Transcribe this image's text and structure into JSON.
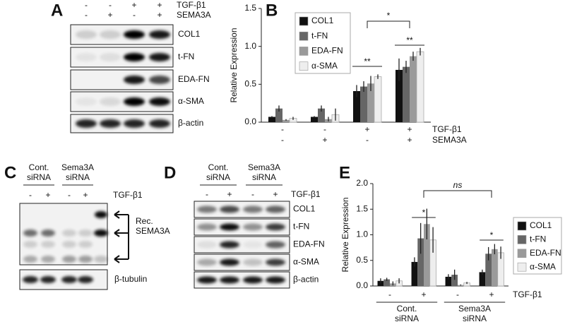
{
  "panel_labels": [
    "A",
    "B",
    "C",
    "D",
    "E"
  ],
  "blot_A": {
    "conditions": [
      {
        "label": "TGF-β1",
        "signs": [
          "-",
          "-",
          "+",
          "+"
        ]
      },
      {
        "label": "SEMA3A",
        "signs": [
          "-",
          "+",
          "-",
          "+"
        ]
      }
    ],
    "bands": [
      "COL1",
      "t-FN",
      "EDA-FN",
      "α-SMA",
      "β-actin"
    ]
  },
  "blot_C": {
    "groups": [
      [
        "Cont.",
        "siRNA"
      ],
      [
        "Sema3A",
        "siRNA"
      ]
    ],
    "signs": [
      "-",
      "+",
      "-",
      "+"
    ],
    "treatment": "TGF-β1",
    "annotation": [
      "Rec.",
      "SEMA3A"
    ],
    "loading": "β-tubulin"
  },
  "blot_D": {
    "groups": [
      [
        "Cont.",
        "siRNA"
      ],
      [
        "Sema3A",
        "siRNA"
      ]
    ],
    "signs": [
      "-",
      "+",
      "-",
      "+"
    ],
    "treatment": "TGF-β1",
    "bands": [
      "COL1",
      "t-FN",
      "EDA-FN",
      "α-SMA",
      "β-actin"
    ]
  },
  "chart_data": [
    {
      "type": "bar",
      "y_label": "Relative Expression",
      "category_rows": [
        {
          "label": "TGF-β1",
          "values": [
            "-",
            "-",
            "+",
            "+"
          ]
        },
        {
          "label": "SEMA3A",
          "values": [
            "-",
            "+",
            "-",
            "+"
          ]
        }
      ],
      "series": [
        {
          "name": "COL1",
          "color": "#111111",
          "values": [
            0.07,
            0.07,
            0.41,
            0.69
          ],
          "errors": [
            0.01,
            0.01,
            0.08,
            0.15
          ]
        },
        {
          "name": "t-FN",
          "color": "#666666",
          "values": [
            0.18,
            0.18,
            0.47,
            0.73
          ],
          "errors": [
            0.04,
            0.04,
            0.07,
            0.08
          ]
        },
        {
          "name": "EDA-FN",
          "color": "#9a9a9a",
          "values": [
            0.03,
            0.04,
            0.51,
            0.87
          ],
          "errors": [
            0.01,
            0.03,
            0.1,
            0.06
          ]
        },
        {
          "name": "α-SMA",
          "color": "#eeeeee",
          "values": [
            0.05,
            0.1,
            0.6,
            0.93
          ],
          "errors": [
            0.02,
            0.08,
            0.03,
            0.05
          ]
        }
      ],
      "ylim": [
        0,
        1.5
      ],
      "yticks": [
        {
          "value": 0,
          "label": "0.0"
        },
        0.5,
        {
          "value": 1,
          "label": "1.0"
        },
        1.5
      ],
      "legend": "upper left",
      "annotations": [
        "**",
        "**",
        "*"
      ]
    },
    {
      "type": "bar",
      "y_label": "Relative Expression",
      "category_rows": [
        {
          "label": "TGF-β1",
          "values": [
            "-",
            "+",
            "-",
            "+"
          ]
        }
      ],
      "group_labels": [
        [
          "Cont.",
          "siRNA"
        ],
        [
          "Sema3A",
          "siRNA"
        ]
      ],
      "series": [
        {
          "name": "COL1",
          "color": "#111111",
          "values": [
            0.1,
            0.47,
            0.18,
            0.27
          ],
          "errors": [
            0.05,
            0.09,
            0.05,
            0.05
          ]
        },
        {
          "name": "t-FN",
          "color": "#666666",
          "values": [
            0.13,
            0.93,
            0.22,
            0.63
          ],
          "errors": [
            0.03,
            0.3,
            0.1,
            0.13
          ]
        },
        {
          "name": "EDA-FN",
          "color": "#9a9a9a",
          "values": [
            0.05,
            1.21,
            0.02,
            0.72
          ],
          "errors": [
            0.04,
            0.3,
            0.01,
            0.1
          ]
        },
        {
          "name": "α-SMA",
          "color": "#eeeeee",
          "values": [
            0.1,
            0.9,
            0.06,
            0.65
          ],
          "errors": [
            0.05,
            0.25,
            0.02,
            0.12
          ]
        }
      ],
      "ylim": [
        0,
        2
      ],
      "yticks": [
        {
          "value": 0,
          "label": "0.0"
        },
        0.5,
        {
          "value": 1,
          "label": "1.0"
        },
        1.5,
        {
          "value": 2,
          "label": "2.0"
        }
      ],
      "legend": "right",
      "annotations": [
        "*",
        "*",
        "ns"
      ]
    }
  ]
}
